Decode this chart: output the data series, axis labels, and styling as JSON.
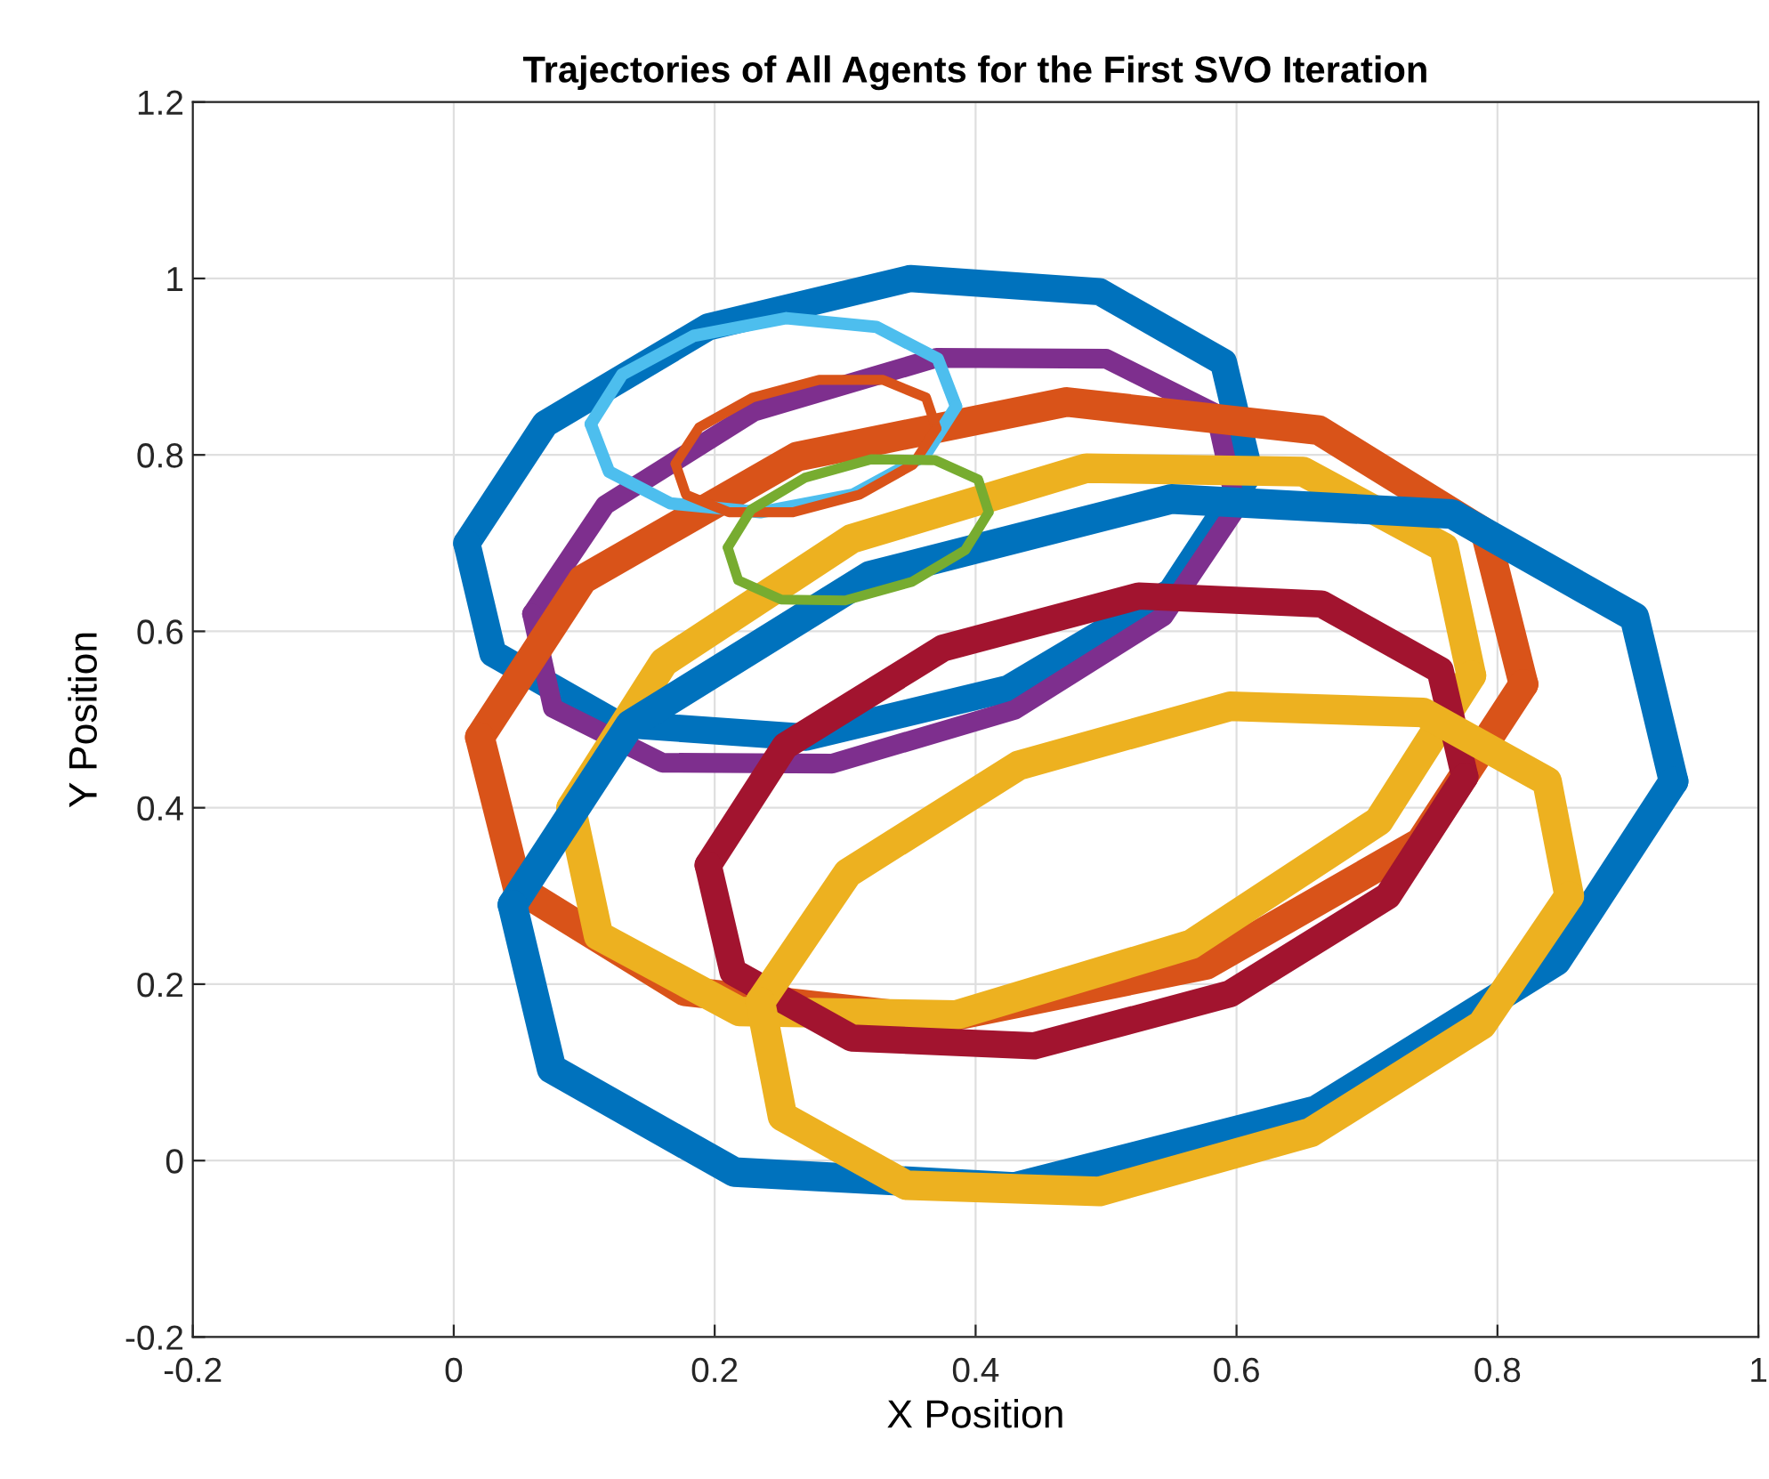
{
  "chart_data": {
    "type": "line",
    "title": "Trajectories of All Agents for the First SVO Iteration",
    "xlabel": "X Position",
    "ylabel": "Y Position",
    "xlim": [
      -0.2,
      1
    ],
    "ylim": [
      -0.2,
      1.2
    ],
    "xticks": [
      -0.2,
      0,
      0.2,
      0.4,
      0.6,
      0.8,
      1
    ],
    "yticks": [
      -0.2,
      0,
      0.2,
      0.4,
      0.6,
      0.8,
      1,
      1.2
    ],
    "grid": true,
    "marker": "none",
    "line_style": "solid",
    "series": [
      {
        "color": "#0072bd",
        "x": [
          0.01,
          0.07,
          0.195,
          0.35,
          0.495,
          0.59,
          0.61
        ],
        "values": [
          0.7,
          0.835,
          0.945,
          1.0,
          0.985,
          0.905,
          0.78
        ]
      },
      {
        "color": "#0072bd",
        "x": [
          0.01,
          0.03,
          0.125,
          0.27,
          0.425,
          0.55,
          0.61
        ],
        "values": [
          0.7,
          0.575,
          0.495,
          0.48,
          0.535,
          0.645,
          0.78
        ]
      },
      {
        "color": "#4dbeee",
        "x": [
          0.105,
          0.129,
          0.184,
          0.255,
          0.324,
          0.371,
          0.385
        ],
        "values": [
          0.835,
          0.891,
          0.935,
          0.955,
          0.945,
          0.909,
          0.855
        ]
      },
      {
        "color": "#4dbeee",
        "x": [
          0.105,
          0.119,
          0.166,
          0.235,
          0.306,
          0.361,
          0.385
        ],
        "values": [
          0.835,
          0.781,
          0.745,
          0.735,
          0.755,
          0.799,
          0.855
        ]
      },
      {
        "color": "#7e2f8e",
        "x": [
          0.06,
          0.116,
          0.23,
          0.37,
          0.5,
          0.584,
          0.6
        ],
        "values": [
          0.62,
          0.743,
          0.849,
          0.91,
          0.909,
          0.847,
          0.74
        ]
      },
      {
        "color": "#7e2f8e",
        "x": [
          0.06,
          0.076,
          0.16,
          0.29,
          0.43,
          0.544,
          0.6
        ],
        "values": [
          0.62,
          0.513,
          0.451,
          0.45,
          0.511,
          0.617,
          0.74
        ]
      },
      {
        "color": "#d95319",
        "x": [
          0.17,
          0.188,
          0.229,
          0.28,
          0.329,
          0.362,
          0.37
        ],
        "values": [
          0.79,
          0.831,
          0.865,
          0.885,
          0.885,
          0.865,
          0.83
        ]
      },
      {
        "color": "#d95319",
        "x": [
          0.17,
          0.178,
          0.211,
          0.26,
          0.311,
          0.352,
          0.37
        ],
        "values": [
          0.79,
          0.755,
          0.735,
          0.735,
          0.755,
          0.789,
          0.83
        ]
      },
      {
        "color": "#77ac30",
        "x": [
          0.21,
          0.228,
          0.269,
          0.32,
          0.369,
          0.402,
          0.41
        ],
        "values": [
          0.695,
          0.738,
          0.774,
          0.795,
          0.794,
          0.772,
          0.735
        ]
      },
      {
        "color": "#77ac30",
        "x": [
          0.21,
          0.218,
          0.251,
          0.3,
          0.351,
          0.392,
          0.41
        ],
        "values": [
          0.695,
          0.658,
          0.636,
          0.635,
          0.656,
          0.692,
          0.735
        ]
      },
      {
        "color": "#d95319",
        "x": [
          0.02,
          0.099,
          0.263,
          0.47,
          0.663,
          0.791,
          0.82
        ],
        "values": [
          0.48,
          0.659,
          0.798,
          0.86,
          0.828,
          0.711,
          0.54
        ]
      },
      {
        "color": "#d95319",
        "x": [
          0.02,
          0.049,
          0.177,
          0.37,
          0.577,
          0.741,
          0.82
        ],
        "values": [
          0.48,
          0.309,
          0.192,
          0.16,
          0.222,
          0.361,
          0.54
        ]
      },
      {
        "color": "#edb120",
        "x": [
          0.09,
          0.161,
          0.305,
          0.485,
          0.651,
          0.759,
          0.78
        ],
        "values": [
          0.4,
          0.565,
          0.705,
          0.785,
          0.781,
          0.695,
          0.55
        ]
      },
      {
        "color": "#edb120",
        "x": [
          0.09,
          0.111,
          0.219,
          0.385,
          0.565,
          0.709,
          0.78
        ],
        "values": [
          0.4,
          0.255,
          0.169,
          0.165,
          0.245,
          0.385,
          0.55
        ]
      },
      {
        "color": "#0072bd",
        "x": [
          0.045,
          0.135,
          0.319,
          0.55,
          0.765,
          0.905,
          0.935
        ],
        "values": [
          0.29,
          0.494,
          0.663,
          0.75,
          0.733,
          0.616,
          0.43
        ]
      },
      {
        "color": "#0072bd",
        "x": [
          0.045,
          0.075,
          0.215,
          0.43,
          0.661,
          0.845,
          0.935
        ],
        "values": [
          0.29,
          0.104,
          -0.013,
          -0.03,
          0.057,
          0.226,
          0.43
        ]
      },
      {
        "color": "#a2142f",
        "x": [
          0.195,
          0.254,
          0.375,
          0.525,
          0.665,
          0.756,
          0.775
        ],
        "values": [
          0.335,
          0.47,
          0.581,
          0.64,
          0.631,
          0.556,
          0.435
        ]
      },
      {
        "color": "#a2142f",
        "x": [
          0.195,
          0.214,
          0.305,
          0.445,
          0.595,
          0.716,
          0.775
        ],
        "values": [
          0.335,
          0.214,
          0.139,
          0.13,
          0.189,
          0.3,
          0.435
        ]
      },
      {
        "color": "#edb120",
        "x": [
          0.235,
          0.302,
          0.433,
          0.595,
          0.743,
          0.838,
          0.855
        ],
        "values": [
          0.18,
          0.326,
          0.448,
          0.515,
          0.508,
          0.43,
          0.3
        ]
      },
      {
        "color": "#edb120",
        "x": [
          0.235,
          0.252,
          0.347,
          0.495,
          0.657,
          0.788,
          0.855
        ],
        "values": [
          0.18,
          0.05,
          -0.028,
          -0.035,
          0.032,
          0.154,
          0.3
        ]
      }
    ]
  }
}
